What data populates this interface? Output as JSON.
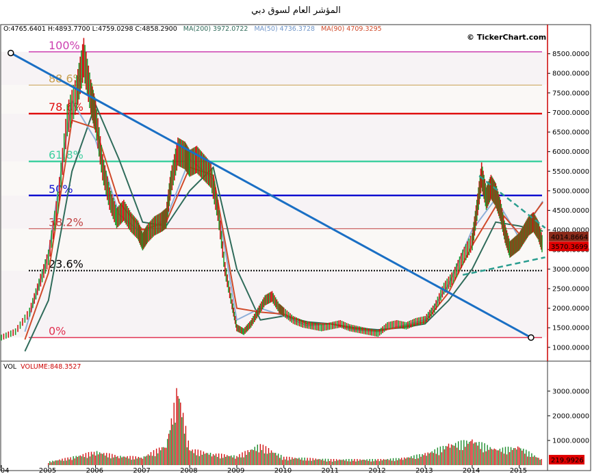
{
  "title": "المؤشر العام لسوق دبي",
  "watermark": "© TickerChart.com",
  "stats": {
    "ohlc": "O:4765.6401 H:4893.7700 L:4759.0298 C:4858.2900",
    "ma200": "MA(200) 3972.0722",
    "ma50": "MA(50) 4736.3728",
    "ma90": "MA(90) 4709.3295"
  },
  "volume_header": {
    "vol": "VOL",
    "volume": "VOLUME:848.3527"
  },
  "colors": {
    "ma200": "#2f6b5a",
    "ma50": "#8fb0d9",
    "ma90": "#d04a2a",
    "trendline": "#1a6fc4",
    "channel": "#2a9d8f",
    "price_axis": "#cc0000"
  },
  "chart_data": [
    {
      "type": "line",
      "title": "المؤشر العام لسوق دبي",
      "x_ticks": [
        "2004",
        "2005",
        "2006",
        "2007",
        "2008",
        "2009",
        "2010",
        "2011",
        "2012",
        "2013",
        "2014",
        "2015"
      ],
      "y_ticks": [
        "1000.0000",
        "1500.0000",
        "2000.0000",
        "2500.0000",
        "3000.0000",
        "3500.0000",
        "4000.0000",
        "4500.0000",
        "5000.0000",
        "5500.0000",
        "6000.0000",
        "6500.0000",
        "7000.0000",
        "7500.0000",
        "8000.0000",
        "8500.0000"
      ],
      "ylim": [
        700,
        9000
      ],
      "xlim": [
        2004.0,
        2015.6
      ],
      "price_series": {
        "x": [
          2004.0,
          2004.3,
          2004.6,
          2004.8,
          2005.0,
          2005.2,
          2005.4,
          2005.6,
          2005.75,
          2005.9,
          2006.0,
          2006.15,
          2006.3,
          2006.45,
          2006.6,
          2006.75,
          2006.9,
          2007.0,
          2007.1,
          2007.25,
          2007.4,
          2007.5,
          2007.6,
          2007.75,
          2007.9,
          2008.0,
          2008.15,
          2008.3,
          2008.45,
          2008.6,
          2008.75,
          2008.9,
          2009.0,
          2009.15,
          2009.3,
          2009.45,
          2009.6,
          2009.75,
          2009.9,
          2010.0,
          2010.2,
          2010.4,
          2010.6,
          2010.8,
          2011.0,
          2011.2,
          2011.4,
          2011.6,
          2011.8,
          2012.0,
          2012.2,
          2012.4,
          2012.6,
          2012.8,
          2013.0,
          2013.2,
          2013.4,
          2013.6,
          2013.8,
          2014.0,
          2014.1,
          2014.2,
          2014.3,
          2014.4,
          2014.5,
          2014.6,
          2014.7,
          2014.8,
          2014.9,
          2015.0,
          2015.1,
          2015.2,
          2015.3,
          2015.4,
          2015.5
        ],
        "y": [
          1250,
          1400,
          1900,
          2600,
          3300,
          4700,
          6800,
          7500,
          8400,
          7400,
          6900,
          5600,
          4800,
          4300,
          4500,
          4200,
          4000,
          3700,
          3900,
          4100,
          4200,
          4300,
          5200,
          6000,
          5900,
          5700,
          5800,
          5600,
          5400,
          4500,
          3000,
          2100,
          1500,
          1400,
          1600,
          1900,
          2200,
          2300,
          2000,
          1900,
          1700,
          1600,
          1550,
          1500,
          1550,
          1600,
          1500,
          1450,
          1400,
          1350,
          1550,
          1600,
          1550,
          1650,
          1700,
          2000,
          2500,
          2800,
          3300,
          3700,
          4500,
          5400,
          4800,
          5100,
          4900,
          4500,
          3900,
          3500,
          3600,
          3700,
          3900,
          4100,
          4200,
          4000,
          3580
        ]
      },
      "ma_series": [
        {
          "name": "MA(200)",
          "x": [
            2004.5,
            2005.0,
            2005.5,
            2006.0,
            2006.5,
            2007.0,
            2007.5,
            2008.0,
            2008.5,
            2009.0,
            2009.5,
            2010.0,
            2010.5,
            2011.0,
            2011.5,
            2012.0,
            2012.5,
            2013.0,
            2013.5,
            2014.0,
            2014.5,
            2015.0,
            2015.5
          ],
          "y": [
            900,
            2200,
            5500,
            7200,
            5800,
            4200,
            4100,
            5000,
            5600,
            3000,
            1700,
            1800,
            1650,
            1600,
            1500,
            1450,
            1500,
            1600,
            2200,
            3000,
            4200,
            4100,
            3970
          ]
        },
        {
          "name": "MA(50)",
          "x": [
            2004.5,
            2005.0,
            2005.5,
            2006.0,
            2006.5,
            2007.0,
            2007.5,
            2008.0,
            2008.5,
            2009.0,
            2009.5,
            2010.0,
            2010.5,
            2011.0,
            2011.5,
            2012.0,
            2012.5,
            2013.0,
            2013.5,
            2014.0,
            2014.5,
            2015.0,
            2015.5
          ],
          "y": [
            1400,
            3400,
            7300,
            6300,
            4400,
            3900,
            4300,
            5800,
            5300,
            1700,
            2000,
            1800,
            1550,
            1600,
            1450,
            1400,
            1550,
            1700,
            2600,
            4000,
            4800,
            3800,
            4736
          ]
        },
        {
          "name": "MA(90)",
          "x": [
            2004.5,
            2005.0,
            2005.5,
            2006.0,
            2006.5,
            2007.0,
            2007.5,
            2008.0,
            2008.5,
            2009.0,
            2009.5,
            2010.0,
            2010.5,
            2011.0,
            2011.5,
            2012.0,
            2012.5,
            2013.0,
            2013.5,
            2014.0,
            2014.5,
            2015.0,
            2015.5
          ],
          "y": [
            1200,
            2900,
            6800,
            6600,
            4700,
            4000,
            4200,
            5600,
            5400,
            2000,
            1900,
            1850,
            1600,
            1600,
            1480,
            1420,
            1520,
            1650,
            2400,
            3600,
            4600,
            3900,
            4709
          ]
        }
      ],
      "fibonacci": [
        {
          "label": "100%",
          "value": 8550,
          "color": "#cc3fb0"
        },
        {
          "label": "88.6%",
          "value": 7700,
          "color": "#c8a050"
        },
        {
          "label": "78.6%",
          "value": 6970,
          "color": "#e01010"
        },
        {
          "label": "61.8%",
          "value": 5750,
          "color": "#3fd0a0"
        },
        {
          "label": "50%",
          "value": 4880,
          "color": "#1010d0"
        },
        {
          "label": "38.2%",
          "value": 4030,
          "color": "#c04040"
        },
        {
          "label": "23.6%",
          "value": 2960,
          "color": "#000000"
        },
        {
          "label": "0%",
          "value": 1250,
          "color": "#e03050"
        }
      ],
      "trendline": {
        "from": {
          "x": 2004.2,
          "y": 8520
        },
        "to": {
          "x": 2015.25,
          "y": 1250
        }
      },
      "channel": [
        {
          "from": {
            "x": 2014.15,
            "y": 5380
          },
          "to": {
            "x": 2015.55,
            "y": 4050
          }
        },
        {
          "from": {
            "x": 2013.8,
            "y": 2850
          },
          "to": {
            "x": 2015.55,
            "y": 3300
          }
        }
      ],
      "price_tags": [
        {
          "label": "4014.8664",
          "value": 3830,
          "bg": "#8a2a1a",
          "fg": "#ffffff"
        },
        {
          "label": "3570.3699",
          "value": 3580,
          "bg": "#e00000",
          "fg": "#ffffff"
        }
      ]
    },
    {
      "type": "bar",
      "title": "VOL",
      "y_ticks": [
        "1000.0000",
        "2000.0000",
        "3000.0000"
      ],
      "ylim": [
        0,
        3800
      ],
      "last_value_tag": {
        "label": "219.9926",
        "bg": "#e00000",
        "fg": "#ffffff"
      },
      "x": [
        2005.0,
        2005.5,
        2006.0,
        2006.5,
        2007.0,
        2007.5,
        2007.75,
        2008.0,
        2008.5,
        2009.0,
        2009.5,
        2010.0,
        2010.5,
        2011.0,
        2011.5,
        2012.0,
        2012.5,
        2013.0,
        2013.5,
        2014.0,
        2014.5,
        2015.0,
        2015.5
      ],
      "values": [
        150,
        350,
        600,
        400,
        350,
        900,
        3400,
        700,
        500,
        400,
        900,
        350,
        300,
        250,
        250,
        250,
        300,
        500,
        900,
        1100,
        700,
        800,
        220
      ]
    }
  ]
}
